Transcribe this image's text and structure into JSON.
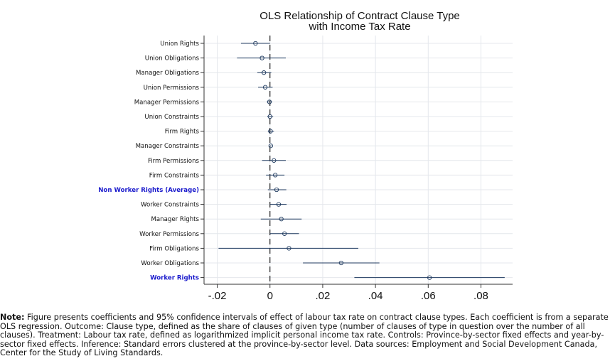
{
  "chart_data": {
    "type": "scatter",
    "title_lines": [
      "OLS Relationship of Contract Clause Type",
      "with Income Tax Rate"
    ],
    "xlim": [
      -0.025,
      0.092
    ],
    "xticks": [
      -0.02,
      0,
      0.02,
      0.04,
      0.06,
      0.08
    ],
    "xtick_labels": [
      "-.02",
      "0",
      ".02",
      ".04",
      ".06",
      ".08"
    ],
    "reference_line_x": 0,
    "grid": true,
    "rows": [
      {
        "label": "Union Rights",
        "coef": -0.0055,
        "lo": -0.011,
        "hi": 0.0,
        "highlight": false
      },
      {
        "label": "Union Obligations",
        "coef": -0.003,
        "lo": -0.0125,
        "hi": 0.006,
        "highlight": false
      },
      {
        "label": "Manager Obligations",
        "coef": -0.0023,
        "lo": -0.0048,
        "hi": 0.0005,
        "highlight": false
      },
      {
        "label": "Union Permissions",
        "coef": -0.0018,
        "lo": -0.0045,
        "hi": 0.001,
        "highlight": false
      },
      {
        "label": "Manager Permissions",
        "coef": -0.0002,
        "lo": -0.0012,
        "hi": 0.0008,
        "highlight": false
      },
      {
        "label": "Union Constraints",
        "coef": 0.0,
        "lo": -0.001,
        "hi": 0.0012,
        "highlight": false
      },
      {
        "label": "Firm Rights",
        "coef": 0.0002,
        "lo": -0.0008,
        "hi": 0.0015,
        "highlight": false
      },
      {
        "label": "Manager Constraints",
        "coef": 0.0003,
        "lo": 0.0,
        "hi": 0.0006,
        "highlight": false
      },
      {
        "label": "Firm Permissions",
        "coef": 0.0015,
        "lo": -0.003,
        "hi": 0.006,
        "highlight": false
      },
      {
        "label": "Firm Constraints",
        "coef": 0.002,
        "lo": -0.0015,
        "hi": 0.0055,
        "highlight": false
      },
      {
        "label": "Non Worker Rights (Average)",
        "coef": 0.0025,
        "lo": -0.0008,
        "hi": 0.0062,
        "highlight": true
      },
      {
        "label": "Worker Constraints",
        "coef": 0.0033,
        "lo": 0.0,
        "hi": 0.0063,
        "highlight": false
      },
      {
        "label": "Manager Rights",
        "coef": 0.0043,
        "lo": -0.0035,
        "hi": 0.012,
        "highlight": false
      },
      {
        "label": "Worker Permissions",
        "coef": 0.0055,
        "lo": 0.0,
        "hi": 0.011,
        "highlight": false
      },
      {
        "label": "Firm Obligations",
        "coef": 0.0072,
        "lo": -0.0195,
        "hi": 0.0335,
        "highlight": false
      },
      {
        "label": "Worker Obligations",
        "coef": 0.027,
        "lo": 0.0125,
        "hi": 0.0415,
        "highlight": false
      },
      {
        "label": "Worker Rights",
        "coef": 0.0605,
        "lo": 0.032,
        "hi": 0.089,
        "highlight": true
      }
    ],
    "colors": {
      "line": "#1f3a5f",
      "highlight_label": "#1a1acc",
      "grid": "#e4e7ec"
    }
  },
  "note": {
    "label": "Note:",
    "text": " Figure presents coefficients and 95% confidence intervals of effect of labour tax rate on contract clause types. Each coefficient is from a separate OLS regression. Outcome: Clause type, defined as the share of clauses of given type (number of clauses of type in question over the number of all clauses). Treatment: Labour tax rate, defined as logarithmized implicit personal income tax rate. Controls: Province-by-sector fixed effects and year-by-sector fixed effects. Inference: Standard errors clustered at the province-by-sector level. Data sources: Employment and Social Development Canada, Center for the Study of Living Standards."
  }
}
